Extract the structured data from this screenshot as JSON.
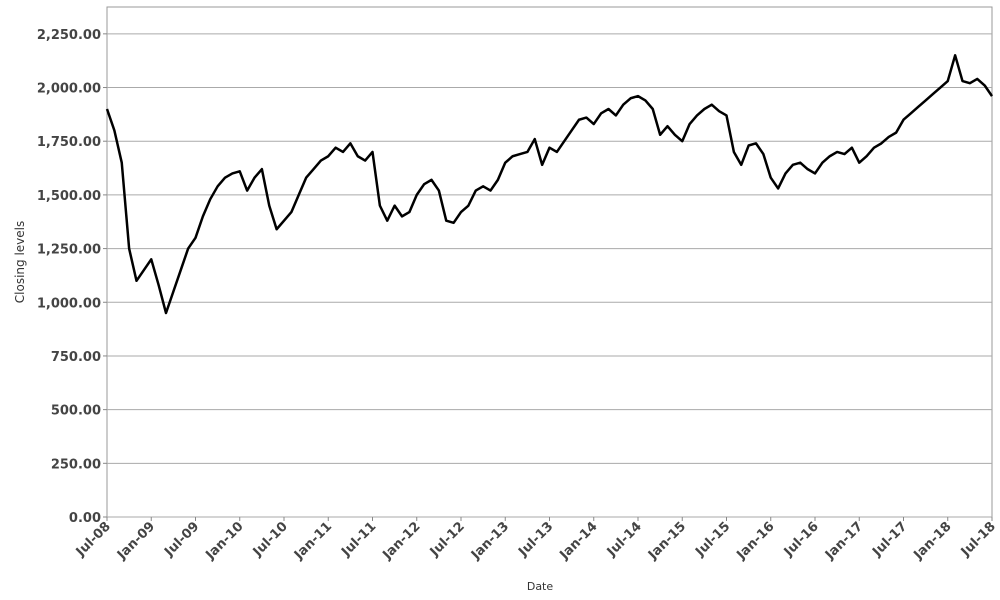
{
  "chart_data": {
    "type": "line",
    "xlabel": "Date",
    "ylabel": "Closing levels",
    "x": [
      "2008-07",
      "2008-08",
      "2008-09",
      "2008-10",
      "2008-11",
      "2008-12",
      "2009-01",
      "2009-02",
      "2009-03",
      "2009-04",
      "2009-05",
      "2009-06",
      "2009-07",
      "2009-08",
      "2009-09",
      "2009-10",
      "2009-11",
      "2009-12",
      "2010-01",
      "2010-02",
      "2010-03",
      "2010-04",
      "2010-05",
      "2010-06",
      "2010-07",
      "2010-08",
      "2010-09",
      "2010-10",
      "2010-11",
      "2010-12",
      "2011-01",
      "2011-02",
      "2011-03",
      "2011-04",
      "2011-05",
      "2011-06",
      "2011-07",
      "2011-08",
      "2011-09",
      "2011-10",
      "2011-11",
      "2011-12",
      "2012-01",
      "2012-02",
      "2012-03",
      "2012-04",
      "2012-05",
      "2012-06",
      "2012-07",
      "2012-08",
      "2012-09",
      "2012-10",
      "2012-11",
      "2012-12",
      "2013-01",
      "2013-02",
      "2013-03",
      "2013-04",
      "2013-05",
      "2013-06",
      "2013-07",
      "2013-08",
      "2013-09",
      "2013-10",
      "2013-11",
      "2013-12",
      "2014-01",
      "2014-02",
      "2014-03",
      "2014-04",
      "2014-05",
      "2014-06",
      "2014-07",
      "2014-08",
      "2014-09",
      "2014-10",
      "2014-11",
      "2014-12",
      "2015-01",
      "2015-02",
      "2015-03",
      "2015-04",
      "2015-05",
      "2015-06",
      "2015-07",
      "2015-08",
      "2015-09",
      "2015-10",
      "2015-11",
      "2015-12",
      "2016-01",
      "2016-02",
      "2016-03",
      "2016-04",
      "2016-05",
      "2016-06",
      "2016-07",
      "2016-08",
      "2016-09",
      "2016-10",
      "2016-11",
      "2016-12",
      "2017-01",
      "2017-02",
      "2017-03",
      "2017-04",
      "2017-05",
      "2017-06",
      "2017-07",
      "2017-08",
      "2017-09",
      "2017-10",
      "2017-11",
      "2017-12",
      "2018-01",
      "2018-02",
      "2018-03",
      "2018-04",
      "2018-05",
      "2018-06",
      "2018-07"
    ],
    "series": [
      {
        "name": "Closing levels",
        "color": "#000000",
        "values": [
          1900,
          1800,
          1650,
          1250,
          1100,
          1150,
          1200,
          1080,
          950,
          1050,
          1150,
          1250,
          1300,
          1400,
          1480,
          1540,
          1580,
          1600,
          1610,
          1520,
          1580,
          1620,
          1450,
          1340,
          1380,
          1420,
          1500,
          1580,
          1620,
          1660,
          1680,
          1720,
          1700,
          1740,
          1680,
          1660,
          1700,
          1450,
          1380,
          1450,
          1400,
          1420,
          1500,
          1550,
          1570,
          1520,
          1380,
          1370,
          1420,
          1450,
          1520,
          1540,
          1520,
          1570,
          1650,
          1680,
          1690,
          1700,
          1760,
          1640,
          1720,
          1700,
          1750,
          1800,
          1850,
          1860,
          1830,
          1880,
          1900,
          1870,
          1920,
          1950,
          1960,
          1940,
          1900,
          1780,
          1820,
          1780,
          1750,
          1830,
          1870,
          1900,
          1920,
          1890,
          1870,
          1700,
          1640,
          1730,
          1740,
          1690,
          1580,
          1530,
          1600,
          1640,
          1650,
          1620,
          1600,
          1650,
          1680,
          1700,
          1690,
          1720,
          1650,
          1680,
          1720,
          1740,
          1770,
          1790,
          1850,
          1880,
          1910,
          1940,
          1970,
          2000,
          2030,
          2150,
          2030,
          2020,
          2040,
          2010,
          1960
        ]
      }
    ],
    "xlim": [
      "2008-07",
      "2018-07"
    ],
    "xticks": [
      {
        "value": "2008-07",
        "label": "Jul-08"
      },
      {
        "value": "2009-01",
        "label": "Jan-09"
      },
      {
        "value": "2009-07",
        "label": "Jul-09"
      },
      {
        "value": "2010-01",
        "label": "Jan-10"
      },
      {
        "value": "2010-07",
        "label": "Jul-10"
      },
      {
        "value": "2011-01",
        "label": "Jan-11"
      },
      {
        "value": "2011-07",
        "label": "Jul-11"
      },
      {
        "value": "2012-01",
        "label": "Jan-12"
      },
      {
        "value": "2012-07",
        "label": "Jul-12"
      },
      {
        "value": "2013-01",
        "label": "Jan-13"
      },
      {
        "value": "2013-07",
        "label": "Jul-13"
      },
      {
        "value": "2014-01",
        "label": "Jan-14"
      },
      {
        "value": "2014-07",
        "label": "Jul-14"
      },
      {
        "value": "2015-01",
        "label": "Jan-15"
      },
      {
        "value": "2015-07",
        "label": "Jul-15"
      },
      {
        "value": "2016-01",
        "label": "Jan-16"
      },
      {
        "value": "2016-07",
        "label": "Jul-16"
      },
      {
        "value": "2017-01",
        "label": "Jan-17"
      },
      {
        "value": "2017-07",
        "label": "Jul-17"
      },
      {
        "value": "2018-01",
        "label": "Jan-18"
      },
      {
        "value": "2018-07",
        "label": "Jul-18"
      }
    ],
    "ylim": [
      0,
      2375
    ],
    "yticks": [
      {
        "value": 0,
        "label": "0.00"
      },
      {
        "value": 250,
        "label": "250.00"
      },
      {
        "value": 500,
        "label": "500.00"
      },
      {
        "value": 750,
        "label": "750.00"
      },
      {
        "value": 1000,
        "label": "1,000.00"
      },
      {
        "value": 1250,
        "label": "1,250.00"
      },
      {
        "value": 1500,
        "label": "1,500.00"
      },
      {
        "value": 1750,
        "label": "1,750.00"
      },
      {
        "value": 2000,
        "label": "2,000.00"
      },
      {
        "value": 2250,
        "label": "2,250.00"
      }
    ],
    "grid": true
  }
}
